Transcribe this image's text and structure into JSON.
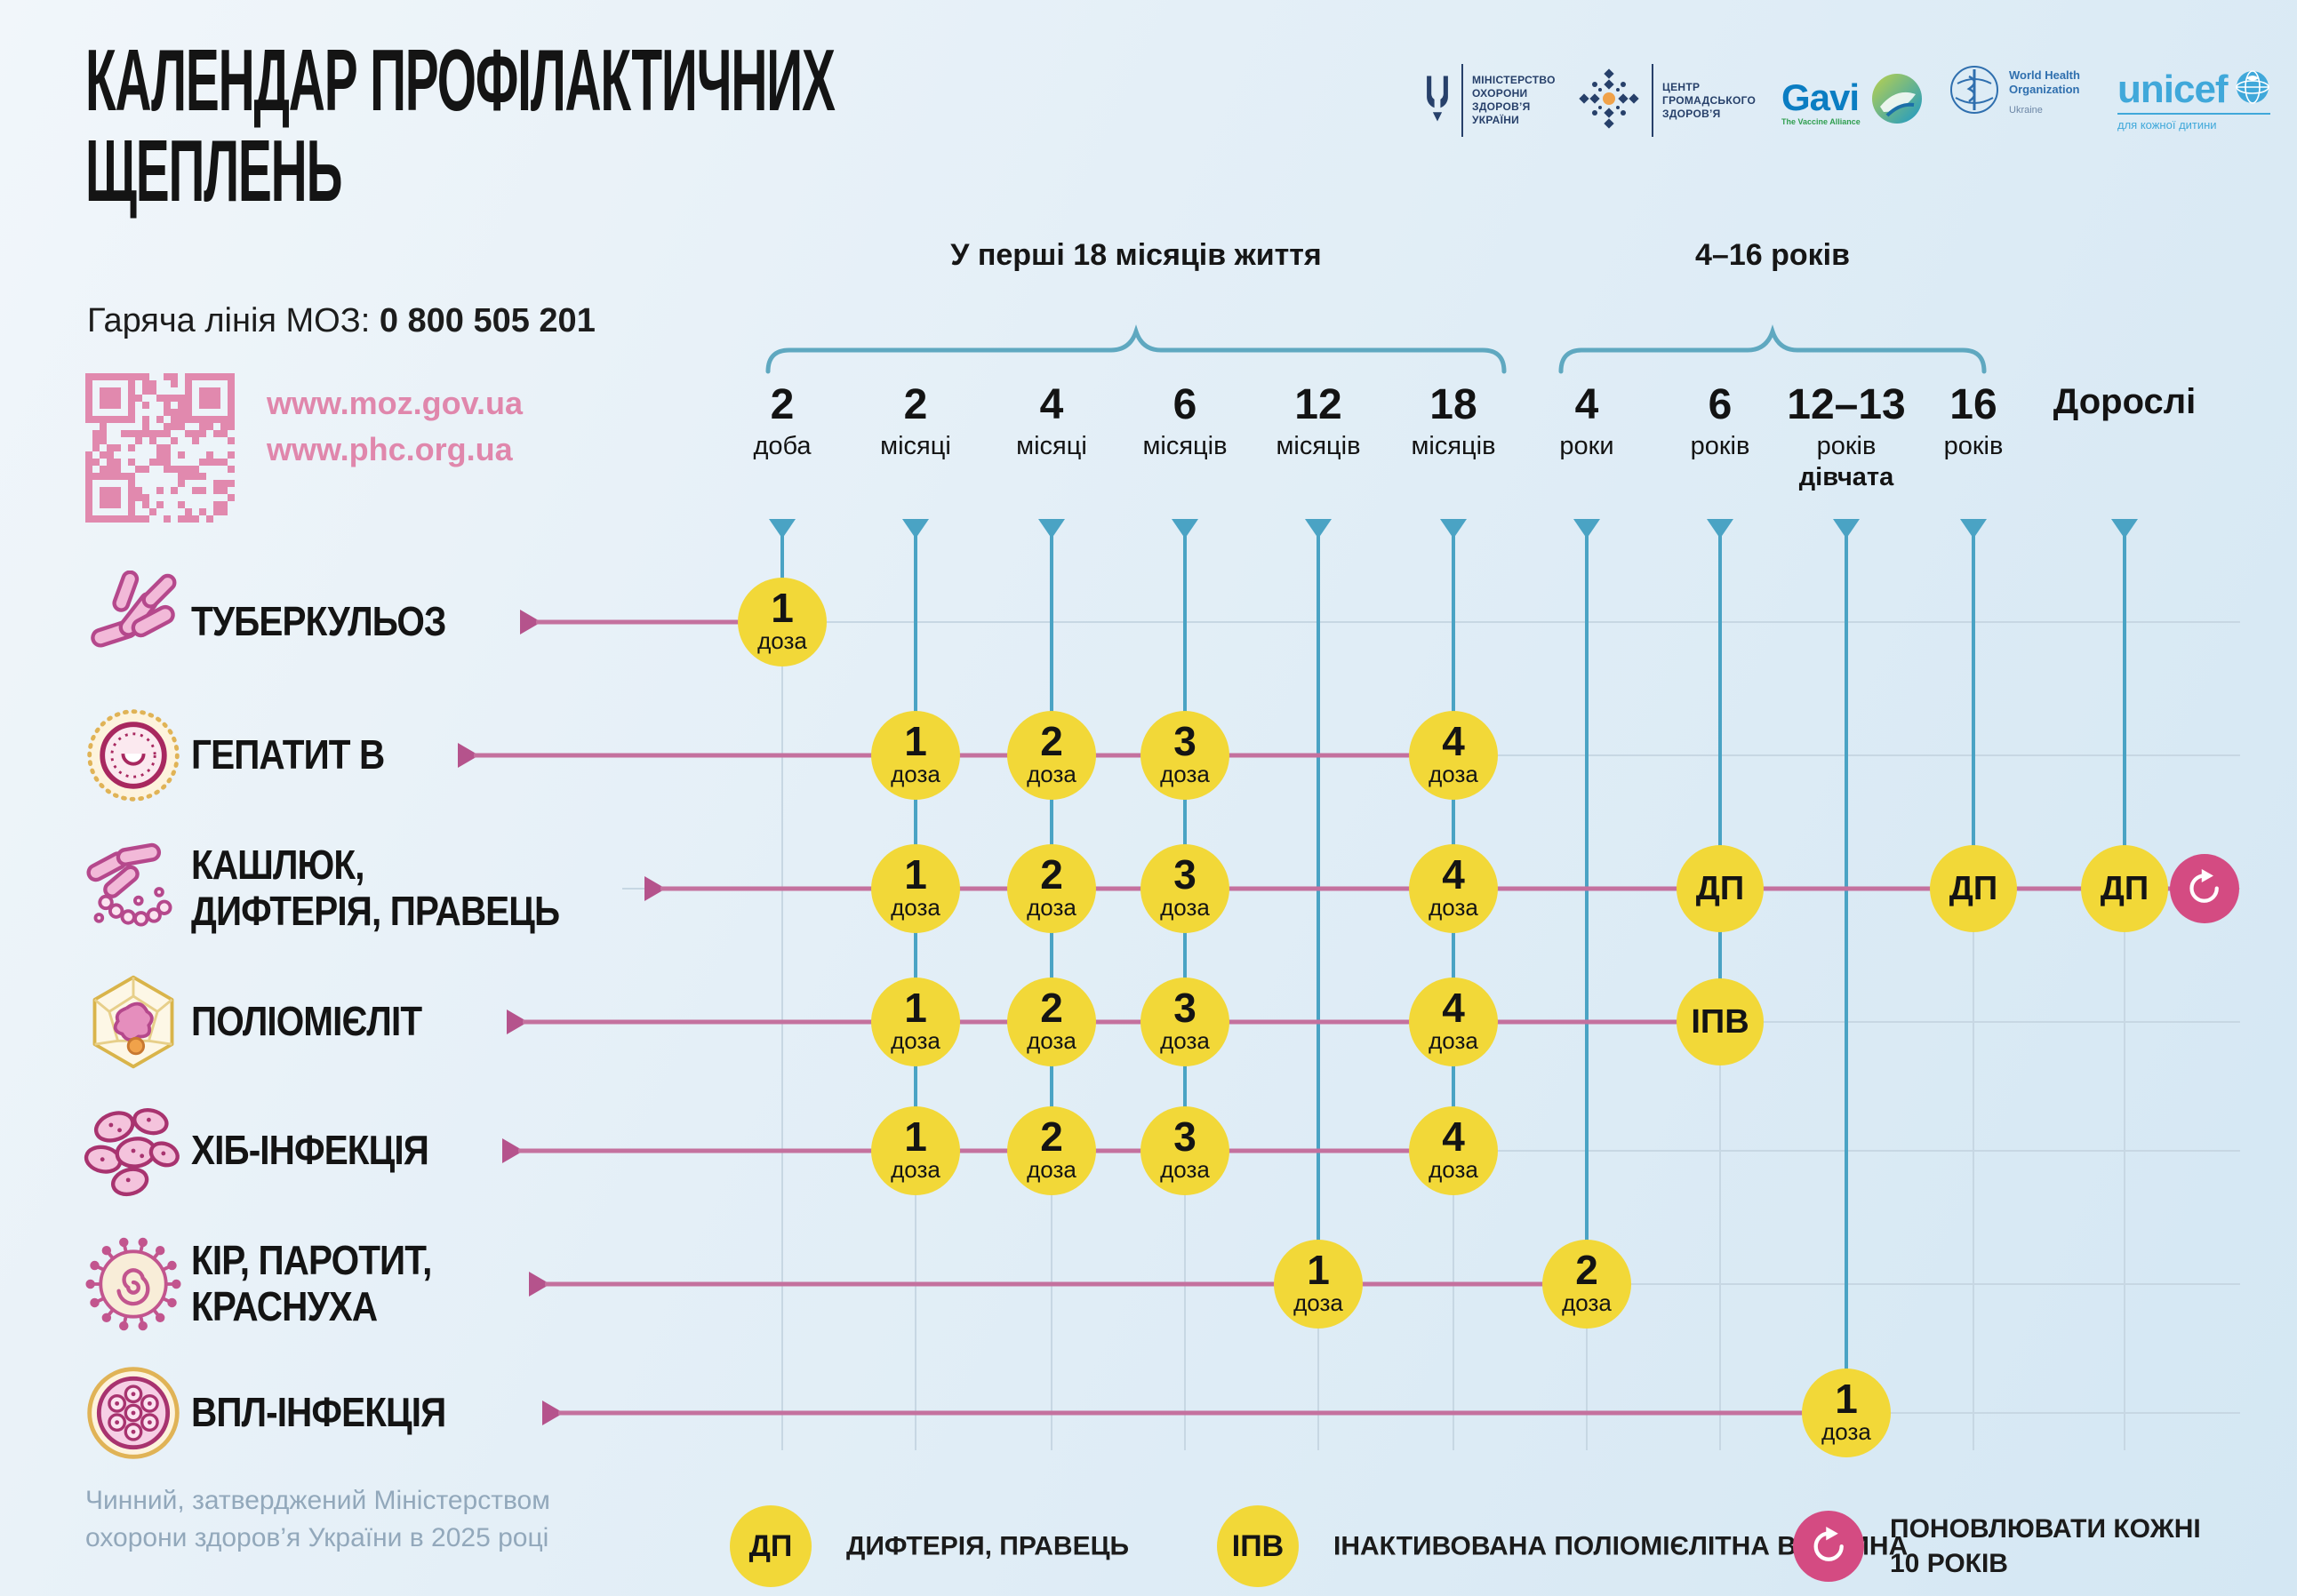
{
  "title_lines": [
    "КАЛЕНДАР ПРОФІЛАКТИЧНИХ",
    "ЩЕПЛЕНЬ"
  ],
  "hotline": {
    "label": "Гаряча лінія МОЗ:",
    "phone": "0 800 505 201"
  },
  "links": [
    "www.moz.gov.ua",
    "www.phc.org.ua"
  ],
  "logos": {
    "moh": {
      "lines": [
        "МІНІСТЕРСТВО",
        "ОХОРОНИ",
        "ЗДОРОВ’Я",
        "УКРАЇНИ"
      ]
    },
    "phc": {
      "lines": [
        "ЦЕНТР",
        "ГРОМАДСЬКОГО",
        "ЗДОРОВ’Я"
      ]
    },
    "gavi": {
      "name": "Gavi",
      "sub": "The Vaccine Alliance"
    },
    "who": {
      "lines": [
        "World Health",
        "Organization"
      ],
      "country": "Ukraine"
    },
    "unicef": {
      "name": "unicef",
      "sub": "для кожної дитини"
    }
  },
  "groups": [
    {
      "label": "У перші 18 місяців життя"
    },
    {
      "label": "4–16 років"
    }
  ],
  "columns": [
    {
      "num": "2",
      "unit": "доба"
    },
    {
      "num": "2",
      "unit": "місяці"
    },
    {
      "num": "4",
      "unit": "місяці"
    },
    {
      "num": "6",
      "unit": "місяців"
    },
    {
      "num": "12",
      "unit": "місяців"
    },
    {
      "num": "18",
      "unit": "місяців"
    },
    {
      "num": "4",
      "unit": "роки"
    },
    {
      "num": "6",
      "unit": "років"
    },
    {
      "num": "12–13",
      "unit": "років",
      "extra": "дівчата"
    },
    {
      "num": "16",
      "unit": "років"
    },
    {
      "num": "Дорослі",
      "unit": ""
    }
  ],
  "rows": [
    {
      "label": [
        "ТУБЕРКУЛЬОЗ"
      ],
      "icon": "tuberculosis-bacteria"
    },
    {
      "label": [
        "ГЕПАТИТ В"
      ],
      "icon": "hepatitis-virus"
    },
    {
      "label": [
        "КАШЛЮК,",
        "ДИФТЕРІЯ, ПРАВЕЦЬ"
      ],
      "icon": "pertussis-diphtheria-bacteria"
    },
    {
      "label": [
        "ПОЛІОМІЄЛІТ"
      ],
      "icon": "polio-virus"
    },
    {
      "label": [
        "ХІБ-ІНФЕКЦІЯ"
      ],
      "icon": "hib-bacteria"
    },
    {
      "label": [
        "КІР, ПАРОТИТ,",
        "КРАСНУХА"
      ],
      "icon": "measles-virus"
    },
    {
      "label": [
        "ВПЛ-ІНФЕКЦІЯ"
      ],
      "icon": "hpv-virus"
    }
  ],
  "doses": [
    {
      "row": 0,
      "col": 0,
      "num": "1",
      "sub": "доза"
    },
    {
      "row": 1,
      "col": 1,
      "num": "1",
      "sub": "доза"
    },
    {
      "row": 1,
      "col": 2,
      "num": "2",
      "sub": "доза"
    },
    {
      "row": 1,
      "col": 3,
      "num": "3",
      "sub": "доза"
    },
    {
      "row": 1,
      "col": 5,
      "num": "4",
      "sub": "доза"
    },
    {
      "row": 2,
      "col": 1,
      "num": "1",
      "sub": "доза"
    },
    {
      "row": 2,
      "col": 2,
      "num": "2",
      "sub": "доза"
    },
    {
      "row": 2,
      "col": 3,
      "num": "3",
      "sub": "доза"
    },
    {
      "row": 2,
      "col": 5,
      "num": "4",
      "sub": "доза"
    },
    {
      "row": 2,
      "col": 7,
      "num": "ДП",
      "sub": ""
    },
    {
      "row": 2,
      "col": 9,
      "num": "ДП",
      "sub": ""
    },
    {
      "row": 2,
      "col": 10,
      "num": "ДП",
      "sub": ""
    },
    {
      "row": 3,
      "col": 1,
      "num": "1",
      "sub": "доза"
    },
    {
      "row": 3,
      "col": 2,
      "num": "2",
      "sub": "доза"
    },
    {
      "row": 3,
      "col": 3,
      "num": "3",
      "sub": "доза"
    },
    {
      "row": 3,
      "col": 5,
      "num": "4",
      "sub": "доза"
    },
    {
      "row": 3,
      "col": 7,
      "num": "ІПВ",
      "sub": ""
    },
    {
      "row": 4,
      "col": 1,
      "num": "1",
      "sub": "доза"
    },
    {
      "row": 4,
      "col": 2,
      "num": "2",
      "sub": "доза"
    },
    {
      "row": 4,
      "col": 3,
      "num": "3",
      "sub": "доза"
    },
    {
      "row": 4,
      "col": 5,
      "num": "4",
      "sub": "доза"
    },
    {
      "row": 5,
      "col": 4,
      "num": "1",
      "sub": "доза"
    },
    {
      "row": 5,
      "col": 6,
      "num": "2",
      "sub": "доза"
    },
    {
      "row": 6,
      "col": 8,
      "num": "1",
      "sub": "доза"
    }
  ],
  "renew_marker_row": 2,
  "legend": [
    {
      "badge": "ДП",
      "badge_type": "text",
      "text": [
        "ДИФТЕРІЯ, ПРАВЕЦЬ"
      ]
    },
    {
      "badge": "ІПВ",
      "badge_type": "text",
      "text": [
        "ІНАКТИВОВАНА ПОЛІОМІЄЛІТНА ВАКЦИНА"
      ]
    },
    {
      "badge": "",
      "badge_type": "refresh",
      "text": [
        "ПОНОВЛЮВАТИ КОЖНІ",
        "10 РОКІВ"
      ]
    }
  ],
  "footer": [
    "Чинний, затверджений Міністерством",
    "охорони здоров’я України в 2025 році"
  ],
  "colors": {
    "accent_pink": "#c4719e",
    "arrow_pink": "#b5538c",
    "dose_yellow": "#f2d838",
    "line_blue": "#4aa3c4",
    "renew_pink": "#d44b82",
    "link_pink": "#e087ac",
    "footer_gray": "#92a8bb"
  }
}
